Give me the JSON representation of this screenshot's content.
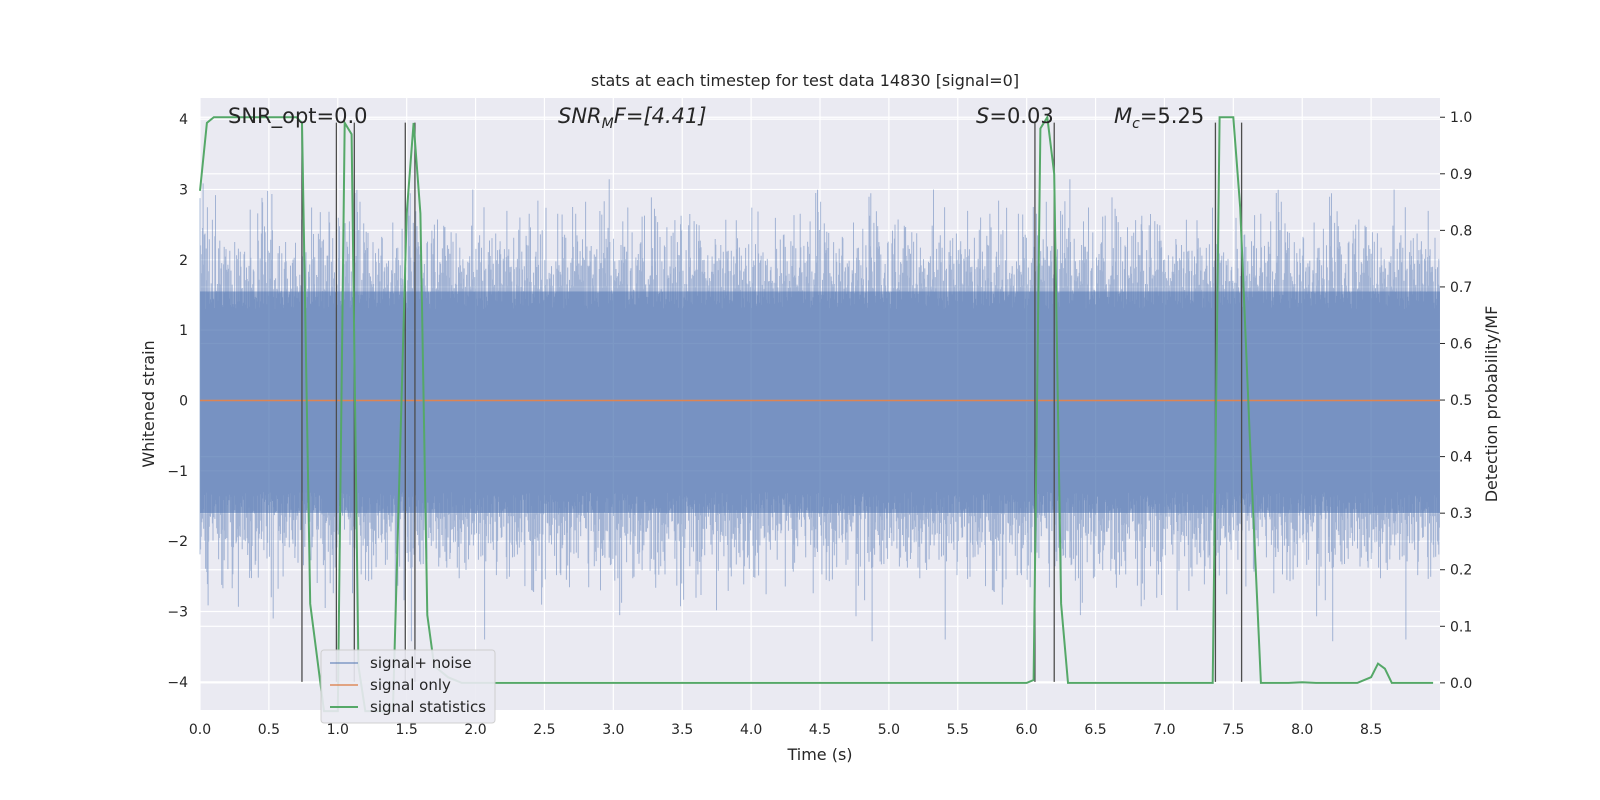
{
  "chart_data": {
    "type": "line",
    "title": "stats at each timestep for test data 14830 [signal=0]",
    "xlabel": "Time (s)",
    "ylabel_left": "Whitened strain",
    "ylabel_right": "Detection probability/MF",
    "xlim": [
      0.0,
      9.0
    ],
    "ylim_left": [
      -4.4,
      4.3
    ],
    "ylim_right": [
      -0.048,
      1.034
    ],
    "x_ticks": [
      "0.0",
      "0.5",
      "1.0",
      "1.5",
      "2.0",
      "2.5",
      "3.0",
      "3.5",
      "4.0",
      "4.5",
      "5.0",
      "5.5",
      "6.0",
      "6.5",
      "7.0",
      "7.5",
      "8.0",
      "8.5"
    ],
    "y_left_ticks": [
      "−4",
      "−3",
      "−2",
      "−1",
      "0",
      "1",
      "2",
      "3",
      "4"
    ],
    "y_right_ticks": [
      "0.0",
      "0.1",
      "0.2",
      "0.3",
      "0.4",
      "0.5",
      "0.6",
      "0.7",
      "0.8",
      "0.9",
      "1.0"
    ],
    "grid": true,
    "legend_placement": "lower-left",
    "annotations": {
      "snr_opt": "SNR_opt=0.0",
      "snr_mf_base": "SNR",
      "snr_mf_sub": "M",
      "snr_mf_rest": "F=[4.41]",
      "s_var": "S",
      "s_val": "=0.03",
      "mc_base": "M",
      "mc_sub": "c",
      "mc_val": "=5.25"
    },
    "series": [
      {
        "name": "signal+ noise",
        "color": "#4c72b0",
        "alpha": 0.5,
        "description_values": "noise, approx ±1.5 typical, peaks to ±4",
        "axis": "left"
      },
      {
        "name": "signal only",
        "color": "#dd8452",
        "values_constant": 0.0,
        "axis": "left"
      },
      {
        "name": "signal statistics",
        "color": "#55a868",
        "axis": "right",
        "x": [
          0.0,
          0.05,
          0.1,
          0.7,
          0.74,
          0.8,
          0.9,
          1.0,
          1.05,
          1.1,
          1.15,
          1.2,
          1.3,
          1.4,
          1.5,
          1.55,
          1.6,
          1.65,
          1.7,
          1.8,
          1.9,
          2.0,
          2.1,
          6.0,
          6.05,
          6.1,
          6.15,
          6.2,
          6.25,
          6.3,
          6.4,
          7.3,
          7.35,
          7.4,
          7.5,
          7.55,
          7.62,
          7.7,
          7.9,
          8.0,
          8.1,
          8.4,
          8.5,
          8.55,
          8.6,
          8.65,
          8.75,
          8.95
        ],
        "values": [
          0.87,
          0.99,
          1.0,
          1.0,
          0.99,
          0.14,
          -0.05,
          -0.05,
          0.99,
          0.97,
          0.03,
          -0.05,
          -0.05,
          -0.05,
          0.83,
          0.99,
          0.83,
          0.12,
          0.03,
          0.01,
          0.0,
          0.0,
          0.0,
          0.0,
          0.005,
          0.98,
          1.0,
          0.9,
          0.14,
          0.0,
          0.0,
          0.0,
          0.0,
          1.0,
          1.0,
          0.84,
          0.43,
          0.0,
          0.0,
          0.001,
          0.0,
          0.0,
          0.01,
          0.034,
          0.025,
          0.0,
          0.0,
          0.0
        ]
      }
    ],
    "vertical_lines_x": [
      0.74,
      0.99,
      1.12,
      1.49,
      1.56,
      6.06,
      6.2,
      7.37,
      7.56
    ],
    "vertical_lines_yrange_left": [
      -4.0,
      3.95
    ]
  },
  "legend": {
    "signal_noise": "signal+ noise",
    "signal_only": "signal only",
    "signal_stats": "signal statistics"
  },
  "colors": {
    "axes_bg": "#eaeaf2",
    "grid": "#ffffff",
    "noise": "#4c72b0",
    "signal_only": "#dd8452",
    "stats": "#55a868",
    "vlines": "#4d4d4d"
  }
}
